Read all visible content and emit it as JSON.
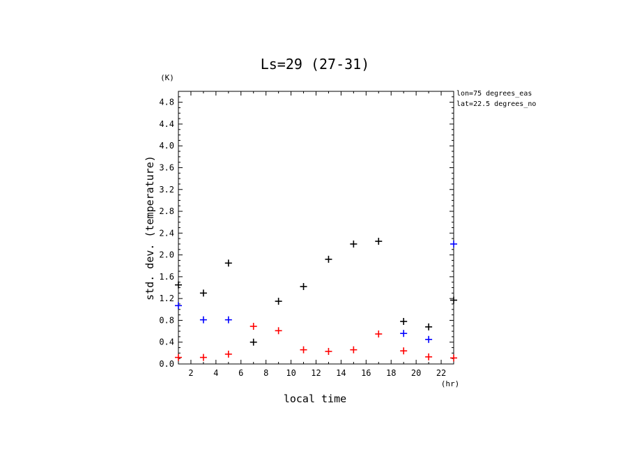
{
  "chart_data": {
    "type": "scatter",
    "title": "Ls=29 (27-31)",
    "xlabel": "local time",
    "ylabel": "std. dev. (temperature)",
    "x_unit": "(hr)",
    "y_unit": "(K)",
    "xlim": [
      1,
      23
    ],
    "ylim": [
      0,
      5.0
    ],
    "x_ticks": [
      2,
      4,
      6,
      8,
      10,
      12,
      14,
      16,
      18,
      20,
      22
    ],
    "y_ticks": [
      0.0,
      0.4,
      0.8,
      1.2,
      1.6,
      2.0,
      2.4,
      2.8,
      3.2,
      3.6,
      4.0,
      4.4,
      4.8
    ],
    "marker": "+",
    "annotations": [
      "lon=75 degrees_eas",
      "lat=22.5 degrees_no"
    ],
    "series": [
      {
        "color": "#000000",
        "x": [
          1,
          3,
          5,
          7,
          9,
          11,
          13,
          15,
          17,
          19,
          21,
          23
        ],
        "y": [
          1.45,
          1.3,
          1.85,
          0.4,
          1.15,
          1.42,
          1.92,
          2.2,
          2.25,
          0.78,
          0.68,
          1.17
        ]
      },
      {
        "color": "#0000ff",
        "x": [
          1,
          3,
          5,
          19,
          21,
          23
        ],
        "y": [
          1.07,
          0.81,
          0.81,
          0.56,
          0.45,
          2.2
        ]
      },
      {
        "color": "#ff0000",
        "x": [
          1,
          3,
          5,
          7,
          9,
          11,
          13,
          15,
          17,
          19,
          21,
          23
        ],
        "y": [
          0.12,
          0.12,
          0.18,
          0.69,
          0.61,
          0.26,
          0.23,
          0.26,
          0.55,
          0.24,
          0.13,
          0.11
        ]
      }
    ]
  }
}
